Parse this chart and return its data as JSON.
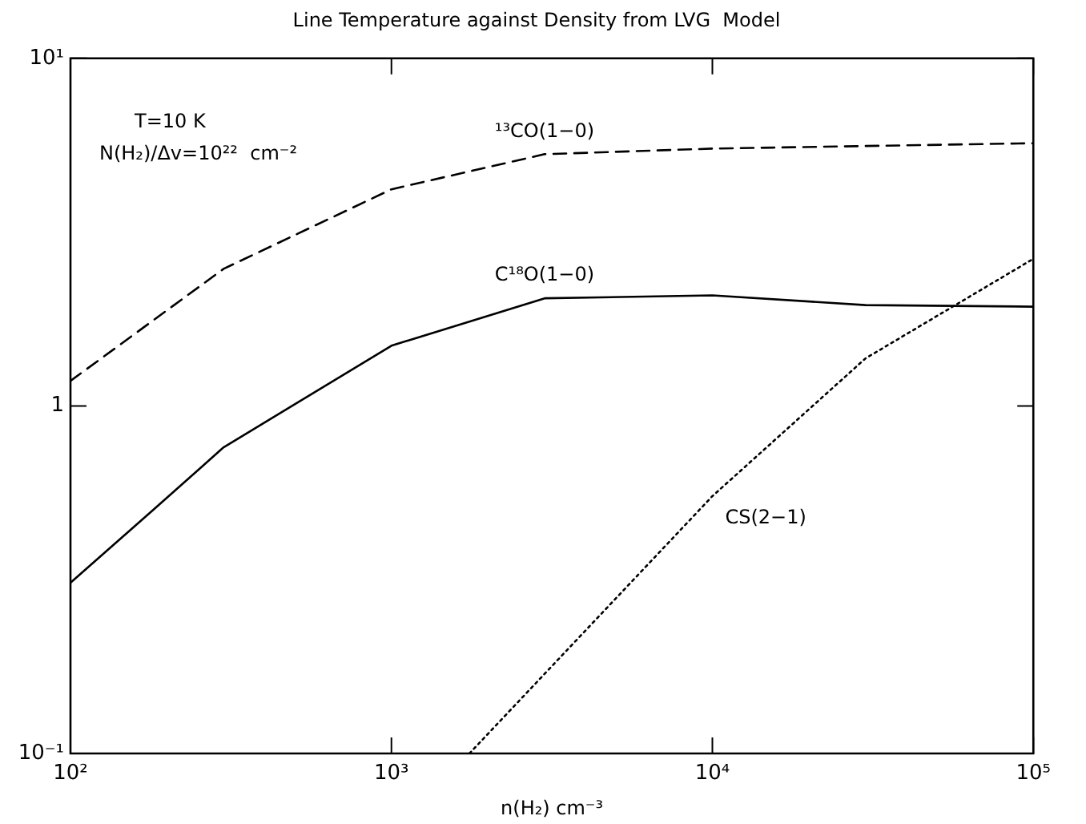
{
  "chart_data": {
    "type": "line",
    "title": "Line Temperature against Density from LVG  Model",
    "xlabel": "n(H₂) cm⁻³",
    "log": "xy",
    "grid": false,
    "legend": false,
    "marker": "none",
    "xlim": [
      100,
      100000
    ],
    "xticks": [
      {
        "value": 100,
        "label": "10²"
      },
      {
        "value": 1000,
        "label": "10³"
      },
      {
        "value": 10000,
        "label": "10⁴"
      },
      {
        "value": 100000,
        "label": "10⁵"
      }
    ],
    "ylim": [
      0.1,
      10
    ],
    "yticks": [
      {
        "value": 0.1,
        "label": "10⁻¹"
      },
      1,
      {
        "value": 10,
        "label": "10¹"
      }
    ],
    "annotations": [
      "T=10 K",
      "N(H₂)/Δv=10²²  cm⁻²"
    ],
    "series": [
      {
        "name": "¹³CO(1−0)",
        "color": "#000000",
        "line_style": "dashed",
        "x": [
          100,
          300,
          1000,
          3000,
          10000,
          100000
        ],
        "values": [
          1.18,
          2.48,
          4.2,
          5.3,
          5.5,
          5.7
        ]
      },
      {
        "name": "C¹⁸O(1−0)",
        "color": "#000000",
        "line_style": "solid",
        "x": [
          100,
          180,
          300,
          1000,
          3000,
          10000,
          30000,
          100000
        ],
        "values": [
          0.31,
          0.5,
          0.76,
          1.49,
          2.04,
          2.08,
          1.95,
          1.93
        ]
      },
      {
        "name": "CS(2−1)",
        "color": "#000000",
        "line_style": "dotted",
        "x": [
          1750,
          10000,
          30000,
          100000
        ],
        "values": [
          0.1,
          0.55,
          1.37,
          2.65
        ]
      }
    ]
  }
}
